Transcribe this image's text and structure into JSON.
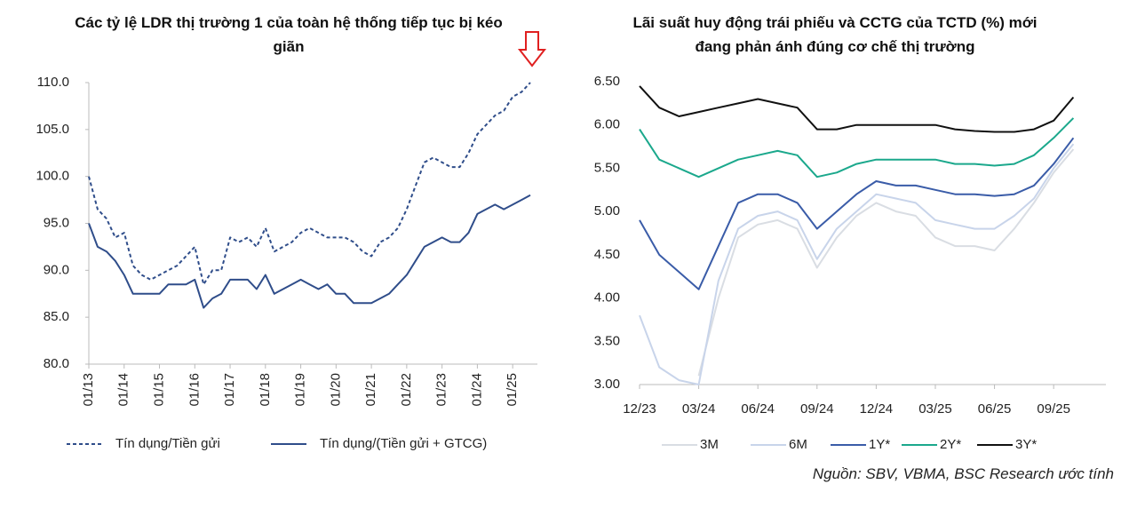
{
  "chart_data": [
    {
      "type": "line",
      "title": "Các tỷ lệ LDR thị trường 1 của toàn hệ thống tiếp tục bị kéo giãn",
      "x": [
        2013,
        2013.25,
        2013.5,
        2013.75,
        2014,
        2014.25,
        2014.5,
        2014.75,
        2015,
        2015.25,
        2015.5,
        2015.75,
        2016,
        2016.25,
        2016.5,
        2016.75,
        2017,
        2017.25,
        2017.5,
        2017.75,
        2018,
        2018.25,
        2018.5,
        2018.75,
        2019,
        2019.25,
        2019.5,
        2019.75,
        2020,
        2020.25,
        2020.5,
        2020.75,
        2021,
        2021.25,
        2021.5,
        2021.75,
        2022,
        2022.25,
        2022.5,
        2022.75,
        2023,
        2023.25,
        2023.5,
        2023.75,
        2024,
        2024.25,
        2024.5,
        2024.75,
        2025,
        2025.25,
        2025.5
      ],
      "series": [
        {
          "name": "Tín dụng/Tiền gửi",
          "color": "#2f4d8a",
          "dashed": true,
          "values": [
            100,
            96.5,
            95.5,
            93.5,
            94,
            90.5,
            89.5,
            89,
            89.5,
            90,
            90.5,
            91.5,
            92.5,
            88.5,
            90,
            90,
            93.5,
            93,
            93.5,
            92.5,
            94.5,
            92,
            92.5,
            93,
            94,
            94.5,
            94,
            93.5,
            93.5,
            93.5,
            93,
            92,
            91.5,
            93,
            93.5,
            94.5,
            96.5,
            99,
            101.5,
            102,
            101.5,
            101,
            101,
            102.5,
            104.5,
            105.5,
            106.5,
            107,
            108.5,
            109,
            110
          ]
        },
        {
          "name": "Tín dụng/(Tiền gửi + GTCG)",
          "color": "#2f4d8a",
          "dashed": false,
          "values": [
            95,
            92.5,
            92,
            91,
            89.5,
            87.5,
            87.5,
            87.5,
            87.5,
            88.5,
            88.5,
            88.5,
            89,
            86,
            87,
            87.5,
            89,
            89,
            89,
            88,
            89.5,
            87.5,
            88,
            88.5,
            89,
            88.5,
            88,
            88.5,
            87.5,
            87.5,
            86.5,
            86.5,
            86.5,
            87,
            87.5,
            88.5,
            89.5,
            91,
            92.5,
            93,
            93.5,
            93,
            93,
            94,
            96,
            96.5,
            97,
            96.5,
            97,
            97.5,
            98
          ]
        }
      ],
      "xlim": [
        2013,
        2025.7
      ],
      "xticks": [
        {
          "value": 2013,
          "label": "01/13"
        },
        {
          "value": 2014,
          "label": "01/14"
        },
        {
          "value": 2015,
          "label": "01/15"
        },
        {
          "value": 2016,
          "label": "01/16"
        },
        {
          "value": 2017,
          "label": "01/17"
        },
        {
          "value": 2018,
          "label": "01/18"
        },
        {
          "value": 2019,
          "label": "01/19"
        },
        {
          "value": 2020,
          "label": "01/20"
        },
        {
          "value": 2021,
          "label": "01/21"
        },
        {
          "value": 2022,
          "label": "01/22"
        },
        {
          "value": 2023,
          "label": "01/23"
        },
        {
          "value": 2024,
          "label": "01/24"
        },
        {
          "value": 2025,
          "label": "01/25"
        }
      ],
      "ylim": [
        80,
        110
      ],
      "yticks": [
        {
          "value": 80,
          "label": "80.0"
        },
        {
          "value": 85,
          "label": "85.0"
        },
        {
          "value": 90,
          "label": "90.0"
        },
        {
          "value": 95,
          "label": "95.0"
        },
        {
          "value": 100,
          "label": "100.0"
        },
        {
          "value": 105,
          "label": "105.0"
        },
        {
          "value": 110,
          "label": "110.0"
        }
      ],
      "xlabels_rotated": true,
      "y_axis_line": true
    },
    {
      "type": "line",
      "title": "Lãi suất huy động trái phiếu và CCTG của TCTD (%) mới đang phản ánh đúng cơ chế thị trường",
      "x": [
        0,
        1,
        2,
        3,
        4,
        5,
        6,
        7,
        8,
        9,
        10,
        11,
        12,
        13,
        14,
        15,
        16,
        17,
        18,
        19,
        20,
        21,
        22
      ],
      "series": [
        {
          "name": "3M",
          "color": "#d9dde3",
          "dashed": false,
          "values": [
            null,
            null,
            null,
            3.1,
            4.0,
            4.7,
            4.85,
            4.9,
            4.8,
            4.35,
            4.7,
            4.95,
            5.1,
            5.0,
            4.95,
            4.7,
            4.6,
            4.6,
            4.55,
            4.8,
            5.1,
            5.45,
            5.72
          ]
        },
        {
          "name": "6M",
          "color": "#c8d4ea",
          "dashed": false,
          "values": [
            3.8,
            3.2,
            3.05,
            3.0,
            4.2,
            4.8,
            4.95,
            5.0,
            4.9,
            4.45,
            4.8,
            5.0,
            5.2,
            5.15,
            5.1,
            4.9,
            4.85,
            4.8,
            4.8,
            4.95,
            5.15,
            5.5,
            5.78
          ]
        },
        {
          "name": "1Y*",
          "color": "#3a5ca8",
          "dashed": false,
          "values": [
            4.9,
            4.5,
            4.3,
            4.1,
            4.6,
            5.1,
            5.2,
            5.2,
            5.1,
            4.8,
            5.0,
            5.2,
            5.35,
            5.3,
            5.3,
            5.25,
            5.2,
            5.2,
            5.18,
            5.2,
            5.3,
            5.55,
            5.85
          ]
        },
        {
          "name": "2Y*",
          "color": "#1ba88c",
          "dashed": false,
          "values": [
            5.95,
            5.6,
            5.5,
            5.4,
            5.5,
            5.6,
            5.65,
            5.7,
            5.65,
            5.4,
            5.45,
            5.55,
            5.6,
            5.6,
            5.6,
            5.6,
            5.55,
            5.55,
            5.53,
            5.55,
            5.65,
            5.85,
            6.08
          ]
        },
        {
          "name": "3Y*",
          "color": "#111111",
          "dashed": false,
          "values": [
            6.45,
            6.2,
            6.1,
            6.15,
            6.2,
            6.25,
            6.3,
            6.25,
            6.2,
            5.95,
            5.95,
            6.0,
            6.0,
            6.0,
            6.0,
            6.0,
            5.95,
            5.93,
            5.92,
            5.92,
            5.95,
            6.05,
            6.32
          ]
        }
      ],
      "xlim": [
        0,
        23.65
      ],
      "xticks": [
        {
          "value": 0,
          "label": "12/23"
        },
        {
          "value": 3,
          "label": "03/24"
        },
        {
          "value": 6,
          "label": "06/24"
        },
        {
          "value": 9,
          "label": "09/24"
        },
        {
          "value": 12,
          "label": "12/24"
        },
        {
          "value": 15,
          "label": "03/25"
        },
        {
          "value": 18,
          "label": "06/25"
        },
        {
          "value": 21,
          "label": "09/25"
        }
      ],
      "ylim": [
        3,
        6.5
      ],
      "yticks": [
        {
          "value": 3,
          "label": "3.00"
        },
        {
          "value": 3.5,
          "label": "3.50"
        },
        {
          "value": 4,
          "label": "4.00"
        },
        {
          "value": 4.5,
          "label": "4.50"
        },
        {
          "value": 5,
          "label": "5.00"
        },
        {
          "value": 5.5,
          "label": "5.50"
        },
        {
          "value": 6,
          "label": "6.00"
        },
        {
          "value": 6.5,
          "label": "6.50"
        }
      ],
      "xlabels_rotated": false,
      "y_axis_line": false
    }
  ],
  "source": "Nguồn: SBV, VBMA, BSC Research ước tính"
}
